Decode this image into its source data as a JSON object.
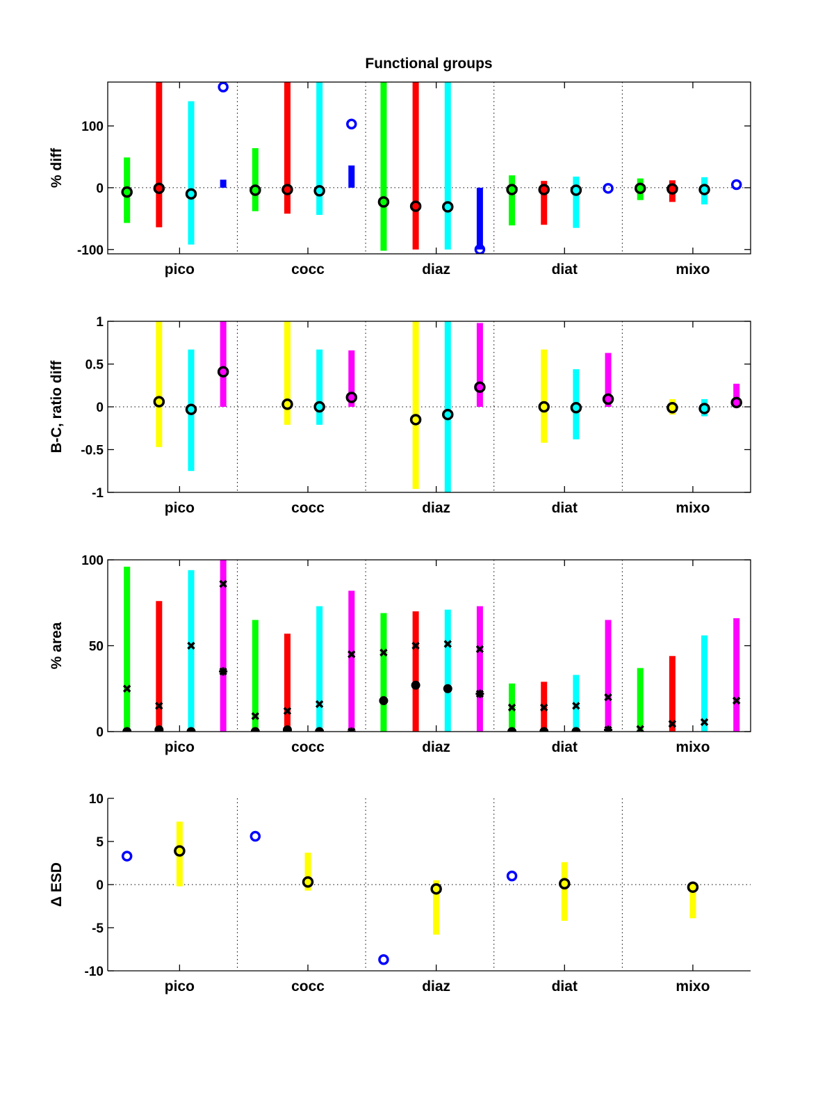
{
  "title": "Functional groups",
  "categories": [
    "pico",
    "cocc",
    "diaz",
    "diat",
    "mixo"
  ],
  "colors": {
    "green": "#00ff00",
    "red": "#ff0000",
    "cyan": "#00ffff",
    "blue": "#0000ff",
    "yellow": "#ffff00",
    "magenta": "#ff00ff",
    "black": "#000000"
  },
  "chart_data": [
    {
      "type": "errorbar",
      "id": "pct-diff",
      "title": "Functional groups",
      "ylabel": "% diff",
      "xlabel": "",
      "ylim": [
        -107,
        171
      ],
      "yticks": [
        -100,
        0,
        100
      ],
      "categories": [
        "pico",
        "cocc",
        "diaz",
        "diat",
        "mixo"
      ],
      "zero_line": true,
      "box": "full",
      "series": [
        {
          "name": "green",
          "color": "green",
          "offset": -0.41,
          "ranges": [
            [
              -57,
              49
            ],
            [
              -38,
              64
            ],
            [
              -102,
              171
            ],
            [
              -61,
              20
            ],
            [
              -20,
              15
            ]
          ],
          "circles": [
            -7,
            -4,
            -23,
            -3,
            -1
          ]
        },
        {
          "name": "red",
          "color": "red",
          "offset": -0.16,
          "ranges": [
            [
              -64,
              171
            ],
            [
              -42,
              171
            ],
            [
              -100,
              171
            ],
            [
              -60,
              11
            ],
            [
              -23,
              12
            ]
          ],
          "circles": [
            -1,
            -3,
            -30,
            -3,
            -2
          ]
        },
        {
          "name": "cyan",
          "color": "cyan",
          "offset": 0.09,
          "ranges": [
            [
              -92,
              140
            ],
            [
              -44,
              171
            ],
            [
              -100,
              171
            ],
            [
              -65,
              18
            ],
            [
              -27,
              17
            ]
          ],
          "circles": [
            -10,
            -5,
            -31,
            -4,
            -3
          ]
        },
        {
          "name": "blue",
          "color": "blue",
          "offset": 0.34,
          "ranges": [
            [
              0,
              13
            ],
            [
              0,
              36
            ],
            [
              -100,
              0
            ],
            null,
            null
          ],
          "open_circles": [
            163,
            103,
            -100,
            -1,
            5
          ]
        }
      ]
    },
    {
      "type": "errorbar",
      "id": "ratio-diff",
      "ylabel": "B-C, ratio diff",
      "ylim": [
        -1,
        1
      ],
      "yticks": [
        -1,
        -0.5,
        0,
        0.5,
        1
      ],
      "categories": [
        "pico",
        "cocc",
        "diaz",
        "diat",
        "mixo"
      ],
      "zero_line": true,
      "box": "full",
      "series": [
        {
          "name": "yellow",
          "color": "yellow",
          "offset": -0.16,
          "ranges": [
            [
              -0.47,
              1
            ],
            [
              -0.21,
              1
            ],
            [
              -0.96,
              1
            ],
            [
              -0.42,
              0.67
            ],
            [
              -0.09,
              0.09
            ]
          ],
          "circles": [
            0.06,
            0.03,
            -0.15,
            0,
            -0.01
          ]
        },
        {
          "name": "cyan",
          "color": "cyan",
          "offset": 0.09,
          "ranges": [
            [
              -0.75,
              0.67
            ],
            [
              -0.21,
              0.67
            ],
            [
              -1,
              1
            ],
            [
              -0.38,
              0.44
            ],
            [
              -0.11,
              0.09
            ]
          ],
          "circles": [
            -0.03,
            0,
            -0.09,
            -0.01,
            -0.02
          ]
        },
        {
          "name": "magenta",
          "color": "magenta",
          "offset": 0.34,
          "ranges": [
            [
              0,
              1
            ],
            [
              0,
              0.66
            ],
            [
              0,
              0.98
            ],
            [
              0,
              0.63
            ],
            [
              0,
              0.27
            ]
          ],
          "circles": [
            0.41,
            0.11,
            0.23,
            0.09,
            0.05
          ]
        }
      ]
    },
    {
      "type": "errorbar",
      "id": "pct-area",
      "ylabel": "% area",
      "ylim": [
        0,
        100
      ],
      "yticks": [
        0,
        50,
        100
      ],
      "categories": [
        "pico",
        "cocc",
        "diaz",
        "diat",
        "mixo"
      ],
      "zero_line": false,
      "box": "full",
      "series": [
        {
          "name": "green",
          "color": "green",
          "offset": -0.41,
          "ranges": [
            [
              0,
              96
            ],
            [
              0,
              65
            ],
            [
              0,
              69
            ],
            [
              0,
              28
            ],
            [
              0,
              37
            ]
          ],
          "crosses": [
            25,
            9,
            46,
            14,
            1.5
          ],
          "dots": [
            0,
            0,
            18,
            0,
            null
          ]
        },
        {
          "name": "red",
          "color": "red",
          "offset": -0.16,
          "ranges": [
            [
              0,
              76
            ],
            [
              0,
              57
            ],
            [
              0,
              70
            ],
            [
              0,
              29
            ],
            [
              0,
              44
            ]
          ],
          "crosses": [
            15,
            12,
            50,
            14,
            4.5
          ],
          "dots": [
            1,
            1,
            27,
            0,
            null
          ]
        },
        {
          "name": "cyan",
          "color": "cyan",
          "offset": 0.09,
          "ranges": [
            [
              0,
              94
            ],
            [
              0,
              73
            ],
            [
              0,
              71
            ],
            [
              0,
              33
            ],
            [
              0,
              56
            ]
          ],
          "crosses": [
            50,
            16,
            51,
            15,
            5.5
          ],
          "dots": [
            0,
            0,
            25,
            0,
            null
          ]
        },
        {
          "name": "magenta",
          "color": "magenta",
          "offset": 0.34,
          "ranges": [
            [
              0,
              100
            ],
            [
              0,
              82
            ],
            [
              0,
              73
            ],
            [
              0,
              65
            ],
            [
              0,
              66
            ]
          ],
          "crosses": [
            86,
            45,
            48,
            20,
            18
          ],
          "stars": [
            35,
            0,
            22,
            1,
            null
          ]
        }
      ]
    },
    {
      "type": "errorbar",
      "id": "delta-esd",
      "ylabel": "Δ ESD",
      "ylim": [
        -10,
        10
      ],
      "yticks": [
        -10,
        -5,
        0,
        5,
        10
      ],
      "categories": [
        "pico",
        "cocc",
        "diaz",
        "diat",
        "mixo"
      ],
      "zero_line": true,
      "box": "open",
      "series": [
        {
          "name": "blue",
          "color": "blue",
          "offset": -0.41,
          "ranges": [
            null,
            null,
            null,
            null,
            null
          ],
          "open_circles": [
            3.3,
            5.6,
            -8.7,
            1.0,
            null
          ]
        },
        {
          "name": "yellow",
          "color": "yellow",
          "offset": 0,
          "ranges": [
            [
              -0.2,
              7.3
            ],
            [
              -0.7,
              3.7
            ],
            [
              -5.8,
              0.5
            ],
            [
              -4.2,
              2.6
            ],
            [
              -3.9,
              -0.3
            ]
          ],
          "circles": [
            3.9,
            0.3,
            -0.5,
            0.1,
            -0.3
          ]
        }
      ]
    }
  ]
}
